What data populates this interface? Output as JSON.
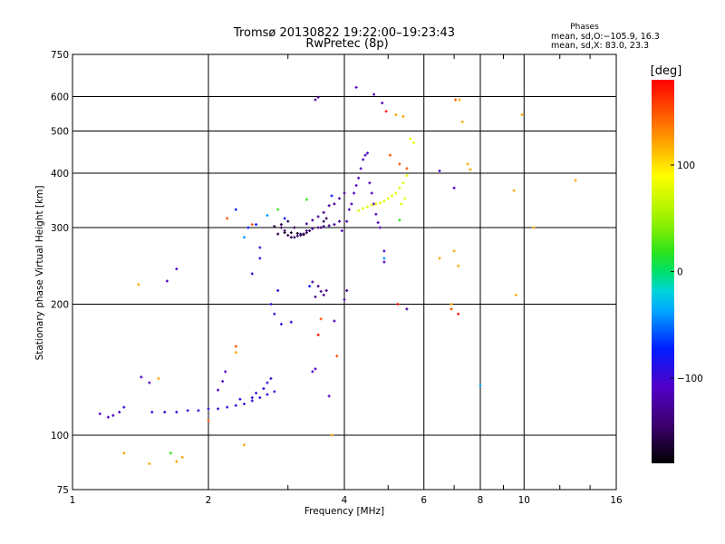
{
  "chart_data": {
    "type": "scatter",
    "title": "Tromsø 20130822 19:22:00–19:23:43",
    "subtitle": "RwPretec (8p)",
    "xlabel": "Frequency [MHz]",
    "ylabel": "Stationary phase Virtual Height [km]",
    "x_scale": "log",
    "y_scale": "log",
    "xlim": [
      1,
      16
    ],
    "ylim": [
      75,
      750
    ],
    "x_ticks": [
      1,
      2,
      4,
      6,
      8,
      10,
      16
    ],
    "x_tick_labels": [
      "1",
      "2",
      "4",
      "6",
      "8",
      "10",
      "16"
    ],
    "y_ticks": [
      75,
      100,
      200,
      300,
      400,
      500,
      600,
      750
    ],
    "y_tick_labels": [
      "75",
      "100",
      "200",
      "300",
      "400",
      "500",
      "600",
      "750"
    ],
    "grid": true,
    "stats": {
      "heading": "Phases",
      "line1": "mean, sd,O:−105.9, 16.3",
      "line2": "mean, sd,X: 83.0, 23.3"
    },
    "colorbar": {
      "label": "[deg]",
      "range": [
        -180,
        180
      ],
      "ticks": [
        -100,
        0,
        100
      ],
      "tick_labels": [
        "−100",
        "0",
        "100"
      ]
    },
    "series": [
      {
        "phase_deg": -110,
        "points": [
          [
            1.15,
            112
          ],
          [
            1.2,
            110
          ],
          [
            1.23,
            111
          ],
          [
            1.27,
            113
          ],
          [
            1.42,
            136
          ],
          [
            1.48,
            132
          ],
          [
            1.62,
            226
          ],
          [
            1.7,
            241
          ],
          [
            2.1,
            127
          ],
          [
            2.15,
            133
          ],
          [
            2.18,
            140
          ],
          [
            3.4,
            140
          ],
          [
            3.7,
            123
          ],
          [
            3.95,
            295
          ],
          [
            4.05,
            310
          ],
          [
            4.1,
            330
          ],
          [
            4.15,
            340
          ],
          [
            4.2,
            360
          ],
          [
            4.25,
            375
          ],
          [
            4.3,
            390
          ],
          [
            4.35,
            410
          ],
          [
            4.4,
            430
          ],
          [
            4.45,
            440
          ],
          [
            4.5,
            445
          ],
          [
            4.55,
            380
          ],
          [
            4.6,
            360
          ],
          [
            4.65,
            340
          ],
          [
            4.7,
            322
          ],
          [
            4.75,
            308
          ],
          [
            4.8,
            300
          ],
          [
            4.85,
            580
          ],
          [
            4.25,
            630
          ],
          [
            4.65,
            607
          ],
          [
            4.9,
            265
          ],
          [
            4.9,
            250
          ],
          [
            6.5,
            405
          ],
          [
            7.0,
            370
          ],
          [
            3.45,
            142
          ],
          [
            3.8,
            183
          ]
        ]
      },
      {
        "phase_deg": -130,
        "points": [
          [
            3.2,
            290
          ],
          [
            3.3,
            295
          ],
          [
            3.4,
            298
          ],
          [
            3.5,
            300
          ],
          [
            3.6,
            302
          ],
          [
            3.7,
            303
          ],
          [
            3.8,
            305
          ],
          [
            3.9,
            310
          ],
          [
            3.7,
            337
          ],
          [
            3.8,
            340
          ],
          [
            3.9,
            350
          ],
          [
            4.0,
            360
          ],
          [
            3.6,
            325
          ],
          [
            3.5,
            318
          ],
          [
            3.4,
            312
          ],
          [
            3.3,
            306
          ],
          [
            3.45,
            590
          ],
          [
            3.5,
            598
          ],
          [
            3.5,
            220
          ],
          [
            3.55,
            214
          ],
          [
            3.6,
            210
          ],
          [
            3.65,
            215
          ],
          [
            3.4,
            225
          ],
          [
            3.45,
            208
          ],
          [
            4.0,
            205
          ],
          [
            4.05,
            215
          ],
          [
            5.5,
            195
          ]
        ]
      },
      {
        "phase_deg": -150,
        "points": [
          [
            2.85,
            290
          ],
          [
            2.9,
            300
          ],
          [
            2.95,
            295
          ],
          [
            3.0,
            288
          ],
          [
            3.05,
            285
          ],
          [
            3.1,
            285
          ],
          [
            3.15,
            287
          ],
          [
            3.2,
            288
          ],
          [
            3.25,
            290
          ],
          [
            3.3,
            292
          ],
          [
            3.35,
            295
          ],
          [
            3.1,
            300
          ],
          [
            3.0,
            310
          ],
          [
            2.9,
            305
          ],
          [
            2.8,
            302
          ],
          [
            3.55,
            300
          ],
          [
            3.6,
            310
          ],
          [
            3.65,
            315
          ]
        ]
      },
      {
        "phase_deg": -170,
        "points": [
          [
            2.95,
            292
          ],
          [
            3.05,
            292
          ],
          [
            3.15,
            291
          ],
          [
            3.25,
            289
          ]
        ]
      },
      {
        "phase_deg": -95,
        "points": [
          [
            1.3,
            116
          ],
          [
            1.5,
            113
          ],
          [
            1.6,
            113
          ],
          [
            1.7,
            113
          ],
          [
            1.8,
            114
          ],
          [
            1.9,
            114
          ],
          [
            2.0,
            115
          ],
          [
            2.1,
            115
          ],
          [
            2.2,
            116
          ],
          [
            2.3,
            117
          ],
          [
            2.4,
            118
          ],
          [
            2.5,
            120
          ],
          [
            2.6,
            122
          ],
          [
            2.7,
            124
          ],
          [
            2.8,
            126
          ],
          [
            2.75,
            135
          ],
          [
            2.7,
            132
          ],
          [
            2.65,
            128
          ],
          [
            2.55,
            125
          ],
          [
            2.5,
            122
          ],
          [
            2.35,
            121
          ],
          [
            2.75,
            200
          ],
          [
            2.8,
            190
          ],
          [
            2.85,
            215
          ],
          [
            2.5,
            235
          ],
          [
            2.6,
            255
          ],
          [
            2.6,
            270
          ],
          [
            2.9,
            180
          ],
          [
            3.05,
            182
          ]
        ]
      },
      {
        "phase_deg": -75,
        "points": [
          [
            2.3,
            330
          ],
          [
            2.45,
            300
          ],
          [
            2.55,
            305
          ],
          [
            2.95,
            315
          ],
          [
            3.35,
            220
          ],
          [
            3.75,
            355
          ]
        ]
      },
      {
        "phase_deg": -40,
        "points": [
          [
            2.4,
            285
          ],
          [
            2.7,
            320
          ],
          [
            4.9,
            255
          ],
          [
            8.0,
            130
          ]
        ]
      },
      {
        "phase_deg": 20,
        "points": [
          [
            1.65,
            91
          ],
          [
            2.85,
            330
          ],
          [
            3.3,
            348
          ],
          [
            5.3,
            312
          ]
        ]
      },
      {
        "phase_deg": 80,
        "points": [
          [
            4.3,
            328
          ],
          [
            4.4,
            332
          ],
          [
            4.5,
            335
          ],
          [
            4.6,
            338
          ],
          [
            4.7,
            340
          ],
          [
            4.8,
            342
          ],
          [
            4.9,
            345
          ],
          [
            5.0,
            350
          ],
          [
            5.1,
            355
          ],
          [
            5.2,
            360
          ],
          [
            5.3,
            370
          ],
          [
            5.4,
            380
          ],
          [
            5.5,
            395
          ],
          [
            5.35,
            340
          ],
          [
            5.45,
            350
          ],
          [
            5.6,
            480
          ],
          [
            5.7,
            470
          ]
        ]
      },
      {
        "phase_deg": 120,
        "points": [
          [
            1.4,
            222
          ],
          [
            1.55,
            135
          ],
          [
            1.7,
            87
          ],
          [
            1.75,
            89
          ],
          [
            1.48,
            86
          ],
          [
            1.3,
            91
          ],
          [
            2.3,
            155
          ],
          [
            2.4,
            95
          ],
          [
            3.75,
            100
          ],
          [
            5.2,
            545
          ],
          [
            5.4,
            540
          ],
          [
            6.5,
            255
          ],
          [
            6.9,
            200
          ],
          [
            7.2,
            590
          ],
          [
            7.3,
            525
          ],
          [
            7.5,
            420
          ],
          [
            7.6,
            408
          ],
          [
            9.5,
            365
          ],
          [
            9.6,
            210
          ],
          [
            9.9,
            545
          ],
          [
            10.5,
            300
          ],
          [
            13.0,
            385
          ],
          [
            7.0,
            265
          ],
          [
            7.15,
            245
          ]
        ]
      },
      {
        "phase_deg": 150,
        "points": [
          [
            2.5,
            305
          ],
          [
            2.2,
            315
          ],
          [
            3.55,
            185
          ],
          [
            3.85,
            152
          ],
          [
            5.05,
            440
          ],
          [
            5.3,
            420
          ],
          [
            5.5,
            410
          ],
          [
            6.9,
            195
          ],
          [
            2.0,
            108
          ],
          [
            2.3,
            160
          ],
          [
            7.05,
            590
          ]
        ]
      },
      {
        "phase_deg": 175,
        "points": [
          [
            3.5,
            170
          ],
          [
            4.95,
            555
          ],
          [
            5.25,
            200
          ],
          [
            7.15,
            190
          ]
        ]
      }
    ]
  }
}
